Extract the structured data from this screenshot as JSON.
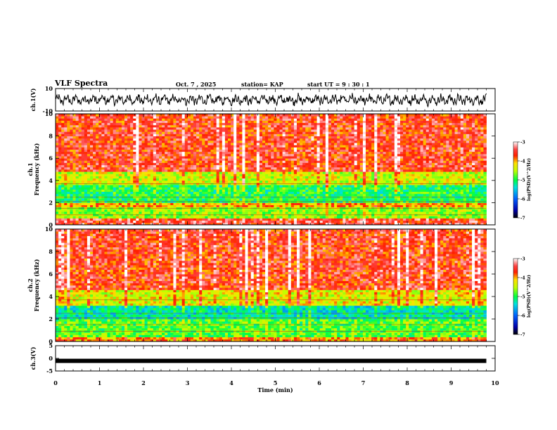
{
  "header": {
    "title": "VLF Spectra",
    "date": "Oct. 7 , 2025",
    "station": "station= KAP",
    "start": "start UT =  9 : 30 : 1"
  },
  "chart_data": [
    {
      "type": "line",
      "name": "ch1-waveform",
      "ylabel": "ch.1(V)",
      "ylim": [
        -10,
        10
      ],
      "y_ticks": [
        -10,
        10
      ],
      "x": {
        "min": 0,
        "max": 9.8
      }
    },
    {
      "type": "heatmap",
      "name": "ch1-spectrogram",
      "ylabel": "ch.1\nFrequency (kHz)",
      "ylim": [
        0,
        10
      ],
      "y_ticks": [
        0,
        2,
        4,
        6,
        8,
        10
      ],
      "x": {
        "min": 0,
        "max": 9.8
      },
      "colorbar": {
        "label": "log(PSD)(V^2/Hz)",
        "min": -7,
        "max": -3,
        "ticks": [
          -3,
          -4,
          -5,
          -6,
          -7
        ]
      },
      "bands": [
        [
          0,
          0.6,
          -3.5
        ],
        [
          0.6,
          1.6,
          -4.6
        ],
        [
          1.6,
          2.1,
          -4.0
        ],
        [
          2.1,
          3.6,
          -5.0
        ],
        [
          3.6,
          4.9,
          -4.4
        ],
        [
          4.9,
          10,
          -3.6
        ]
      ]
    },
    {
      "type": "heatmap",
      "name": "ch2-spectrogram",
      "ylabel": "ch.2\nFrequency (kHz)",
      "ylim": [
        0,
        10
      ],
      "y_ticks": [
        0,
        2,
        4,
        6,
        8,
        10
      ],
      "x": {
        "min": 0,
        "max": 9.8
      },
      "colorbar": {
        "label": "log(PSD)(V^2/Hz)",
        "min": -7,
        "max": -3,
        "ticks": [
          -3,
          -4,
          -5,
          -6,
          -7
        ]
      },
      "bands": [
        [
          0,
          0.5,
          -3.9
        ],
        [
          0.5,
          2.0,
          -4.8
        ],
        [
          2.0,
          3.2,
          -5.3
        ],
        [
          3.2,
          4.6,
          -4.3
        ],
        [
          4.6,
          10,
          -3.6
        ]
      ]
    },
    {
      "type": "line",
      "name": "ch3-signal",
      "ylabel": "ch.3(V)",
      "ylim": [
        -5,
        5
      ],
      "y_ticks": [
        -5,
        0,
        5
      ],
      "x": {
        "min": 0,
        "max": 9.8
      },
      "level": -1
    }
  ],
  "x_axis": {
    "label": "Time (min)",
    "min": 0,
    "max": 10,
    "ticks": [
      0,
      1,
      2,
      3,
      4,
      5,
      6,
      7,
      8,
      9,
      10
    ]
  }
}
